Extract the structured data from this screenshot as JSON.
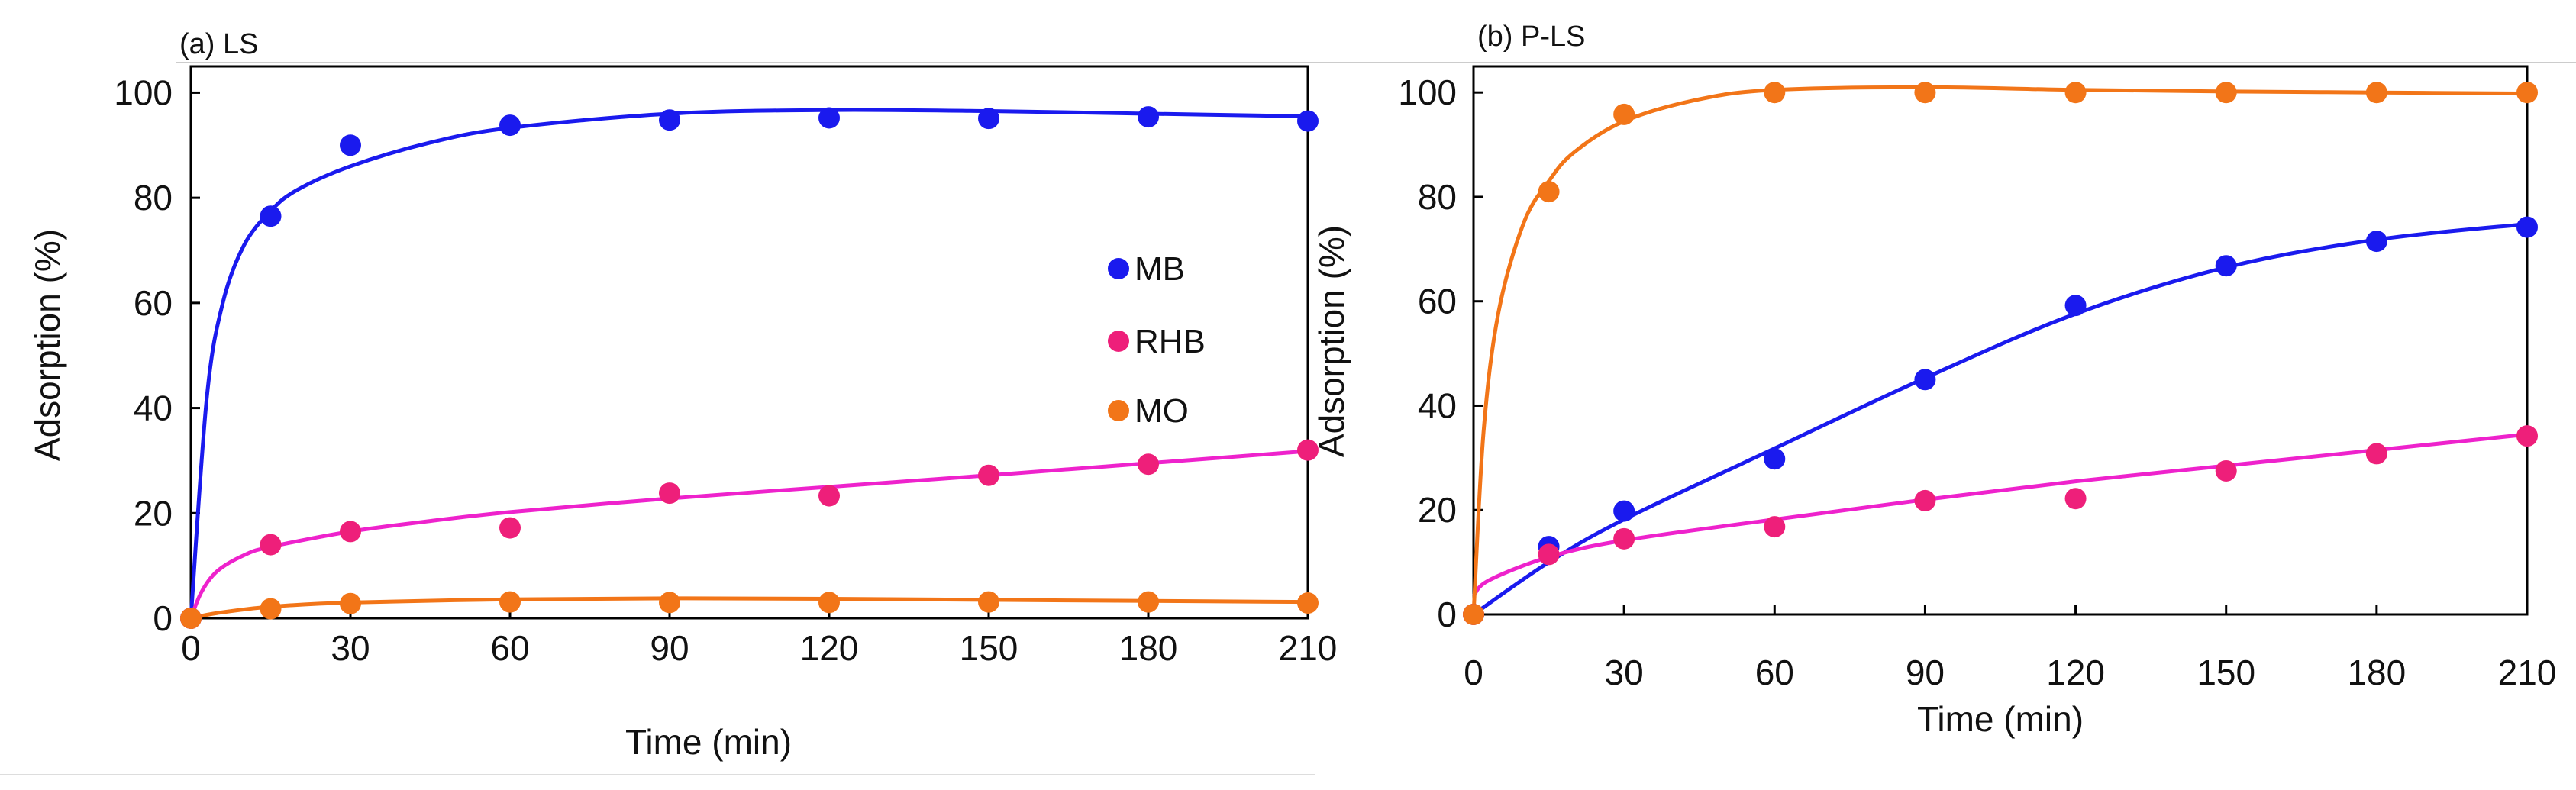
{
  "colors": {
    "MB": "#1a1aee",
    "RHB": "#ee1f7a",
    "MO": "#f27518"
  },
  "fit_colors": {
    "MB": "#1a1aee",
    "RHB": "#ee22cc",
    "MO": "#f27518"
  },
  "chart_data": [
    {
      "type": "scatter",
      "title": "(a) LS",
      "xlabel": "Time (min)",
      "ylabel": "Adsorption (%)",
      "xlim": [
        0,
        210
      ],
      "ylim": [
        0,
        105
      ],
      "x_ticks": [
        0,
        30,
        60,
        90,
        120,
        150,
        180,
        210
      ],
      "y_ticks": [
        0,
        20,
        40,
        60,
        80,
        100
      ],
      "x_tick_labels": [
        "0",
        "30",
        "60",
        "90",
        "120",
        "150",
        "180",
        "210"
      ],
      "y_tick_labels": [
        "0",
        "20",
        "40",
        "60",
        "80",
        "100"
      ],
      "legend": {
        "position": "right-middle",
        "entries": [
          "MB",
          "RHB",
          "MO"
        ]
      },
      "series": [
        {
          "name": "MB",
          "x": [
            0,
            15,
            30,
            60,
            90,
            120,
            150,
            180,
            210
          ],
          "y": [
            0,
            76.5,
            90,
            93.8,
            94.8,
            95.2,
            95.1,
            95.4,
            94.6
          ],
          "fit": {
            "x": [
              0,
              3,
              6,
              10,
              15,
              20,
              30,
              45,
              60,
              90,
              120,
              150,
              180,
              210
            ],
            "y": [
              0,
              42,
              60,
              71,
              77.5,
              81.5,
              86,
              90.5,
              93.3,
              96,
              96.7,
              96.5,
              96,
              95.5
            ]
          }
        },
        {
          "name": "RHB",
          "x": [
            0,
            15,
            30,
            60,
            90,
            120,
            150,
            180,
            210
          ],
          "y": [
            0,
            14,
            16.5,
            17.2,
            23.8,
            23.3,
            27.2,
            29.3,
            32
          ],
          "fit": {
            "x": [
              0,
              2,
              5,
              10,
              15,
              30,
              45,
              60,
              90,
              120,
              150,
              180,
              210
            ],
            "y": [
              0,
              5,
              9,
              12,
              13.6,
              16.5,
              18.5,
              20.2,
              22.8,
              25,
              27.2,
              29.5,
              31.8
            ]
          }
        },
        {
          "name": "MO",
          "x": [
            0,
            15,
            30,
            60,
            90,
            120,
            150,
            180,
            210
          ],
          "y": [
            0,
            1.8,
            2.8,
            3.1,
            3.0,
            3.0,
            3.1,
            3.1,
            2.9
          ],
          "fit": {
            "x": [
              0,
              5,
              15,
              30,
              60,
              90,
              120,
              150,
              180,
              210
            ],
            "y": [
              0,
              1.0,
              2.2,
              3.0,
              3.6,
              3.8,
              3.7,
              3.5,
              3.3,
              3.1
            ]
          }
        }
      ]
    },
    {
      "type": "scatter",
      "title": "(b) P-LS",
      "xlabel": "Time (min)",
      "ylabel": "Adsorption (%)",
      "xlim": [
        0,
        210
      ],
      "ylim": [
        0,
        105
      ],
      "x_ticks": [
        0,
        30,
        60,
        90,
        120,
        150,
        180,
        210
      ],
      "y_ticks": [
        0,
        20,
        40,
        60,
        80,
        100
      ],
      "x_tick_labels": [
        "0",
        "30",
        "60",
        "90",
        "120",
        "150",
        "180",
        "210"
      ],
      "y_tick_labels": [
        "0",
        "20",
        "40",
        "60",
        "80",
        "100"
      ],
      "series": [
        {
          "name": "MB",
          "x": [
            0,
            15,
            30,
            60,
            90,
            120,
            150,
            180,
            210
          ],
          "y": [
            0,
            13,
            19.8,
            29.8,
            45,
            59.2,
            66.8,
            71.5,
            74.2
          ],
          "fit": {
            "x": [
              0,
              15,
              30,
              60,
              90,
              120,
              150,
              180,
              210
            ],
            "y": [
              0,
              10,
              18.2,
              31.8,
              45.3,
              57.6,
              66.5,
              71.8,
              74.8
            ]
          }
        },
        {
          "name": "RHB",
          "x": [
            0,
            15,
            30,
            60,
            90,
            120,
            150,
            180,
            210
          ],
          "y": [
            0,
            11.5,
            14.5,
            16.8,
            21.8,
            22.2,
            27.5,
            30.8,
            34.2
          ],
          "fit": {
            "x": [
              0,
              3,
              15,
              30,
              60,
              90,
              120,
              150,
              180,
              210
            ],
            "y": [
              3.5,
              6.5,
              11,
              14.2,
              18.2,
              22,
              25.5,
              28.5,
              31.5,
              34.5
            ]
          }
        },
        {
          "name": "MO",
          "x": [
            0,
            15,
            30,
            60,
            90,
            120,
            150,
            180,
            210
          ],
          "y": [
            0,
            81,
            95.8,
            100,
            100,
            100,
            100,
            100,
            100
          ],
          "fit": {
            "x": [
              0,
              2,
              5,
              10,
              15,
              20,
              30,
              45,
              60,
              90,
              120,
              150,
              180,
              210
            ],
            "y": [
              0,
              35,
              58,
              75,
              83,
              88.5,
              94.5,
              98.7,
              100.5,
              101,
              100.5,
              100.2,
              100,
              99.8
            ]
          }
        }
      ]
    }
  ]
}
